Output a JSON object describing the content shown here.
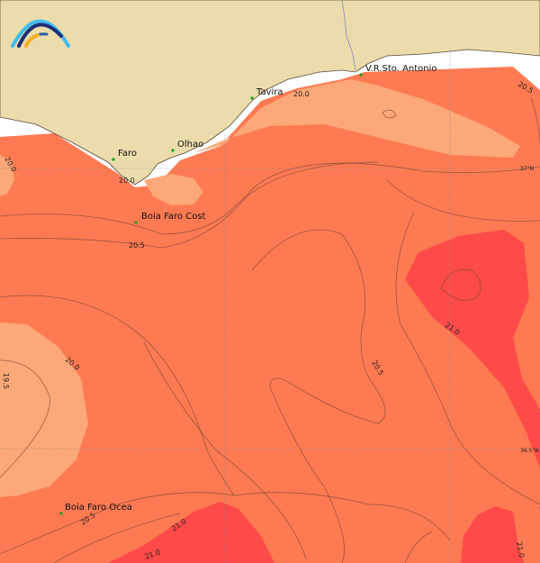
{
  "map": {
    "colors": {
      "land": "#ecdcab",
      "sea_mid": "#fe7a52",
      "sea_cool": "#fda878",
      "sea_warm": "#fe4a48",
      "nodata": "#ffffff",
      "coast": "#5a4a3a",
      "station": "#1a9a1a"
    },
    "logo_icon": "wave-arcs-logo",
    "places": [
      {
        "name": "Faro"
      },
      {
        "name": "Olhao"
      },
      {
        "name": "Tavira"
      },
      {
        "name": "V.R.Sto. Antonio"
      },
      {
        "name": "Boia Faro Cost"
      },
      {
        "name": "Boia Faro Ocea"
      }
    ],
    "latitude_labels": [
      "37°N",
      "36.5°N"
    ],
    "contour_labels": [
      "20.0",
      "20.0",
      "20.5",
      "20.0",
      "20.5",
      "21.0",
      "20.5",
      "20.0",
      "19.5",
      "20.5",
      "21.0",
      "21.0",
      "21.0"
    ]
  }
}
